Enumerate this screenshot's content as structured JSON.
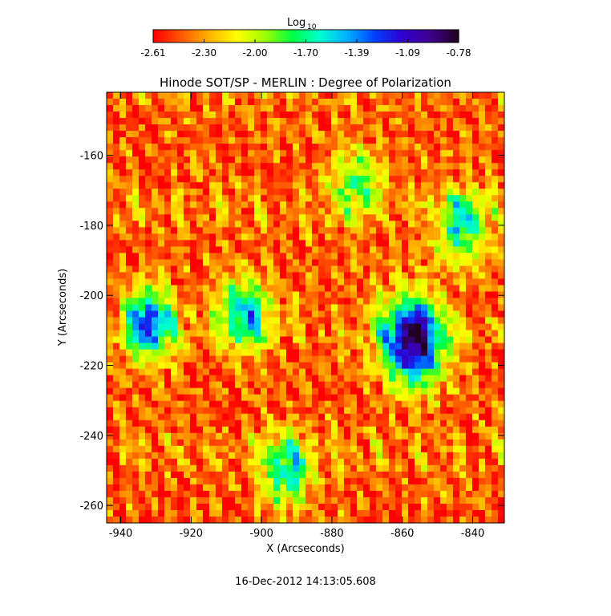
{
  "chart_data": {
    "type": "heatmap",
    "title": "Hinode SOT/SP - MERLIN : Degree of Polarization",
    "xlabel": "X (Arcseconds)",
    "ylabel": "Y (Arcseconds)",
    "xlim": [
      -944,
      -831
    ],
    "ylim": [
      -265,
      -142
    ],
    "x_ticks": [
      "-940",
      "-920",
      "-900",
      "-880",
      "-860",
      "-840"
    ],
    "y_ticks": [
      "-160",
      "-180",
      "-200",
      "-220",
      "-240",
      "-260"
    ],
    "colorbar": {
      "label_base": "Log",
      "label_sub": "10",
      "ticks": [
        "-2.61",
        "-2.30",
        "-2.00",
        "-1.70",
        "-1.39",
        "-1.09",
        "-0.78"
      ],
      "range": [
        -2.61,
        -0.78
      ],
      "colors": [
        "#ff0000",
        "#ff5a00",
        "#ffb400",
        "#ffff00",
        "#a0ff00",
        "#00ff40",
        "#00ffd0",
        "#00b0ff",
        "#0040ff",
        "#3000d0",
        "#400090",
        "#200020"
      ]
    },
    "features": [
      {
        "kind": "sunspot",
        "x": -857,
        "y": -213,
        "value": -0.85
      },
      {
        "kind": "plage",
        "x": -905,
        "y": -205,
        "value": -1.5
      },
      {
        "kind": "plage",
        "x": -843,
        "y": -180,
        "value": -1.6
      },
      {
        "kind": "plage",
        "x": -873,
        "y": -168,
        "value": -1.8
      },
      {
        "kind": "plage",
        "x": -932,
        "y": -208,
        "value": -1.3
      },
      {
        "kind": "plage",
        "x": -893,
        "y": -250,
        "value": -1.6
      }
    ]
  },
  "footer": {
    "timestamp": "16-Dec-2012 14:13:05.608"
  }
}
